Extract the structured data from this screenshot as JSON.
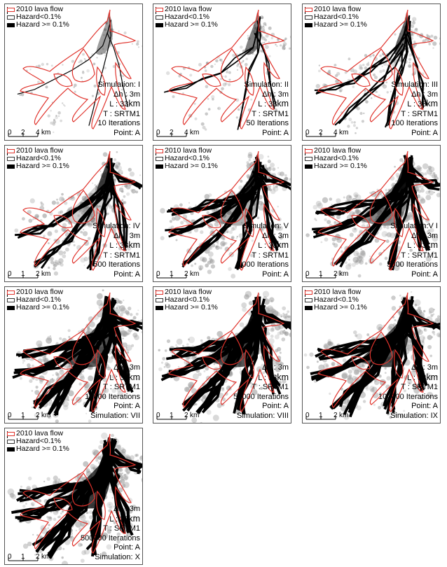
{
  "legend": {
    "lava_flow": "2010 lava flow",
    "low_hazard": "Hazard<0.1%",
    "high_hazard": "Hazard >= 0.1%"
  },
  "colors": {
    "lava_outline": "#e0332c",
    "hazard_high": "#000000",
    "hazard_low": "#9a9a9a"
  },
  "panels": [
    {
      "simulation": "Simulation: I",
      "dh": "Δh : 3m",
      "l_prefix": "L : 33",
      "l_unit": "km",
      "t": "T : SRTM1",
      "iterations": "10 Iterations",
      "point": "Point: A",
      "scale": [
        "0",
        "2",
        "4",
        "km"
      ],
      "sim_last": false,
      "density": 0.12
    },
    {
      "simulation": "Simulation: II",
      "dh": "Δh : 3m",
      "l_prefix": "L : 33",
      "l_unit": "km",
      "t": "T : SRTM1",
      "iterations": "50 Iterations",
      "point": "Point: A",
      "scale": [
        "0",
        "2",
        "4",
        "km"
      ],
      "sim_last": false,
      "density": 0.28
    },
    {
      "simulation": "Simulation: III",
      "dh": "Δh : 3m",
      "l_prefix": "L : 33",
      "l_unit": "km",
      "t": "T : SRTM1",
      "iterations": "100 Iterations",
      "point": "Point: A",
      "scale": [
        "0",
        "2",
        "4",
        "km"
      ],
      "sim_last": false,
      "density": 0.4
    },
    {
      "simulation": "Simulation: IV",
      "dh": "Δh : 3m",
      "l_prefix": "L : 33",
      "l_unit": "km",
      "t": "T : SRTM1",
      "iterations": "500 Iterations",
      "point": "Point: A",
      "scale": [
        "0",
        "1",
        "2",
        "km"
      ],
      "sim_last": false,
      "density": 0.62
    },
    {
      "simulation": "Simulation: V",
      "dh": "Δh : 3m",
      "l_prefix": "L : 33",
      "l_unit": "km",
      "t": "T : SRTM1",
      "iterations": "1000 Iterations",
      "point": "Point: A",
      "scale": [
        "0",
        "1",
        "2",
        "km"
      ],
      "sim_last": false,
      "density": 0.7
    },
    {
      "simulation": "Simulation:V I",
      "dh": "Δh : 3m",
      "l_prefix": "L : 33",
      "l_unit": "km",
      "t": "T : SRTM1",
      "iterations": "5000 Iterations",
      "point": "Point: A",
      "scale": [
        "0",
        "1",
        "2",
        "km"
      ],
      "sim_last": false,
      "density": 0.8
    },
    {
      "simulation": "Simulation: VII",
      "dh": "Δh : 3m",
      "l_prefix": "L : 33",
      "l_unit": "km",
      "t": "T : SRTM1",
      "iterations": "10000 Iterations",
      "point": "Point: A",
      "scale": [
        "0",
        "1",
        "2",
        "km"
      ],
      "sim_last": true,
      "density": 0.9
    },
    {
      "simulation": "Simulation: VIII",
      "dh": "Δh : 3m",
      "l_prefix": "L : 33",
      "l_unit": "km",
      "t": "T : SRTM1",
      "iterations": "50000 Iterations",
      "point": "Point: A",
      "scale": [
        "0",
        "1",
        "2",
        "km"
      ],
      "sim_last": true,
      "density": 0.92
    },
    {
      "simulation": "Simulation: IX",
      "dh": "Δh : 3m",
      "l_prefix": "L : 33",
      "l_unit": "km",
      "t": "T : SRTM1",
      "iterations": "100000 Iterations",
      "point": "Point: A",
      "scale": [
        "0",
        "1",
        "2",
        "km"
      ],
      "sim_last": true,
      "density": 0.94
    },
    {
      "simulation": "Simulation: X",
      "dh": "Δh : 3m",
      "l_prefix": "L : 33",
      "l_unit": "km",
      "t": "T : SRTM1",
      "iterations": "500000 Iterations",
      "point": "Point: A",
      "scale": [
        "0",
        "1",
        "2",
        "km"
      ],
      "sim_last": true,
      "density": 0.96
    }
  ]
}
